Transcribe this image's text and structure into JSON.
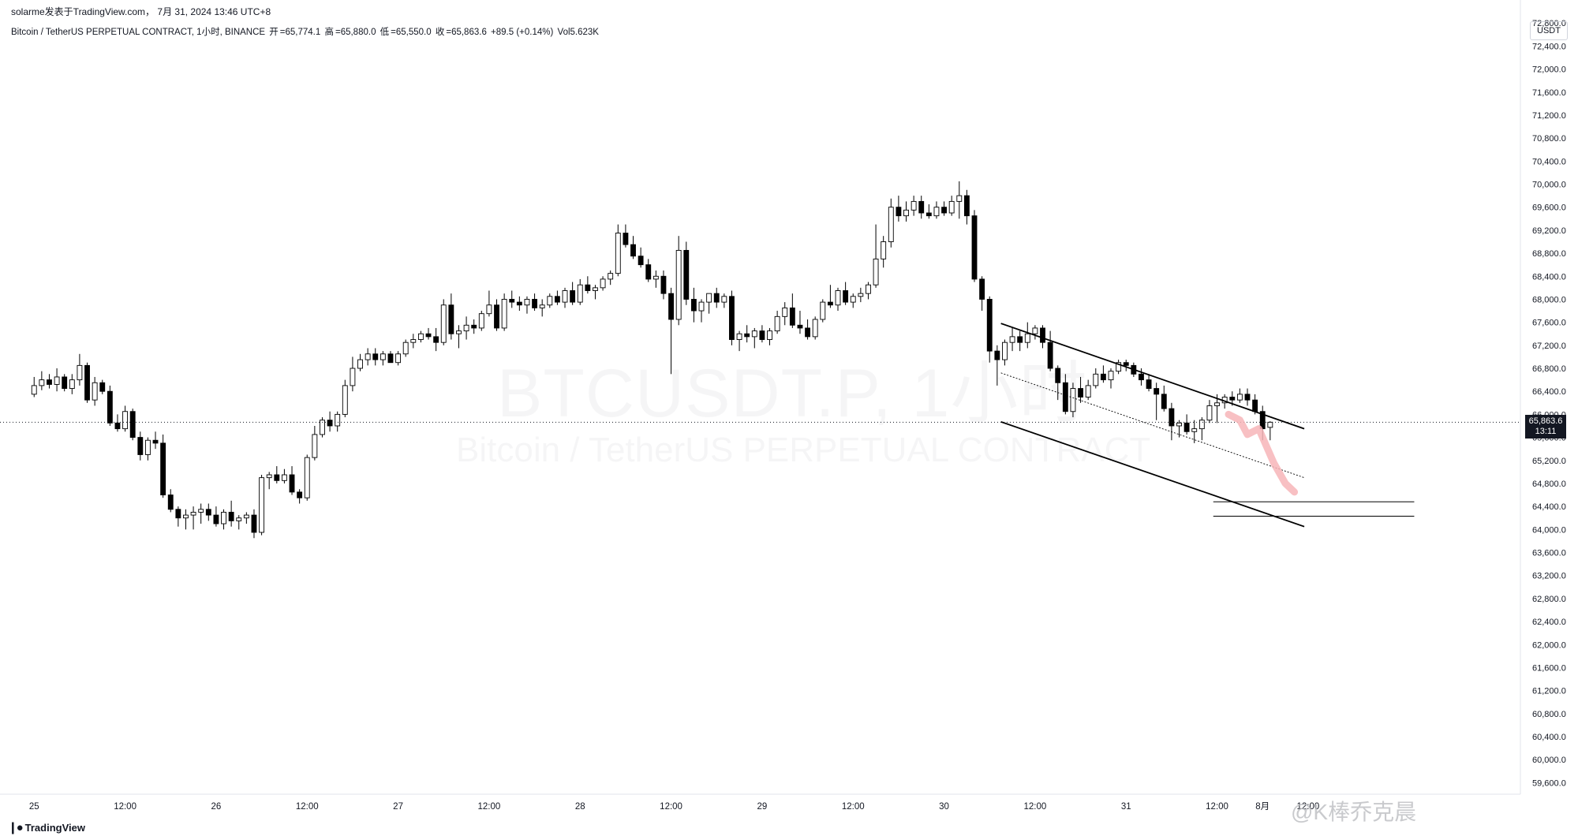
{
  "header": {
    "publisher_line": "solarme发表于TradingView.com， 7月 31, 2024 13:46 UTC+8",
    "symbol": "Bitcoin / TetherUS PERPETUAL CONTRACT, 1小时, BINANCE",
    "open_label": "开",
    "open": "=65,774.1",
    "high_label": "高",
    "high": "=65,880.0",
    "low_label": "低",
    "low": "=65,550.0",
    "close_label": "收",
    "close": "=65,863.6",
    "change": "+89.5 (+0.14%)",
    "volume": "Vol5.623K"
  },
  "currency": "USDT",
  "price_tag": {
    "price": "65,863.6",
    "countdown": "13:11"
  },
  "watermark": {
    "main": "BTCUSDT.P, 1小时",
    "sub": "Bitcoin / TetherUS PERPETUAL CONTRACT"
  },
  "footer": {
    "brand": "TradingView",
    "weibo": "@K棒乔克晨"
  },
  "colors": {
    "candle_down": "#000000",
    "candle_up": "#ffffff",
    "candle_outline": "#000000",
    "projection": "#f7b5b9",
    "grid_text": "#131722"
  },
  "chart_data": {
    "type": "candlestick",
    "title": "",
    "ylim": [
      59400,
      73200
    ],
    "y_ticks": [
      59600,
      60000,
      60400,
      60800,
      61200,
      61600,
      62000,
      62400,
      62800,
      63200,
      63600,
      64000,
      64400,
      64800,
      65200,
      65600,
      66000,
      66400,
      66800,
      67200,
      67600,
      68000,
      68400,
      68800,
      69200,
      69600,
      70000,
      70400,
      70800,
      71200,
      71600,
      72000,
      72400,
      72800
    ],
    "x_labels": [
      "25",
      "12:00",
      "26",
      "12:00",
      "27",
      "12:00",
      "28",
      "12:00",
      "29",
      "12:00",
      "30",
      "12:00",
      "31",
      "12:00",
      "8月",
      "12:00"
    ],
    "x_label_positions": [
      0,
      12,
      24,
      36,
      48,
      60,
      72,
      84,
      96,
      108,
      120,
      132,
      144,
      156,
      162,
      168
    ],
    "x_range": [
      -4.5,
      196
    ],
    "current_price": 65863.6,
    "ohlc": [
      [
        66350,
        66650,
        66300,
        66500
      ],
      [
        66500,
        66750,
        66420,
        66600
      ],
      [
        66600,
        66700,
        66450,
        66520
      ],
      [
        66520,
        66800,
        66400,
        66650
      ],
      [
        66650,
        66700,
        66400,
        66450
      ],
      [
        66450,
        66700,
        66350,
        66600
      ],
      [
        66600,
        67050,
        66500,
        66850
      ],
      [
        66850,
        66900,
        66200,
        66250
      ],
      [
        66250,
        66650,
        66150,
        66550
      ],
      [
        66550,
        66600,
        66350,
        66400
      ],
      [
        66400,
        66500,
        65800,
        65850
      ],
      [
        65850,
        66000,
        65700,
        65750
      ],
      [
        65750,
        66150,
        65700,
        66050
      ],
      [
        66050,
        66100,
        65550,
        65600
      ],
      [
        65600,
        65700,
        65200,
        65300
      ],
      [
        65300,
        65600,
        65200,
        65550
      ],
      [
        65550,
        65700,
        65400,
        65500
      ],
      [
        65500,
        65650,
        64550,
        64600
      ],
      [
        64600,
        64700,
        64300,
        64350
      ],
      [
        64350,
        64400,
        64050,
        64200
      ],
      [
        64200,
        64350,
        64000,
        64250
      ],
      [
        64250,
        64400,
        64000,
        64300
      ],
      [
        64300,
        64450,
        64100,
        64350
      ],
      [
        64350,
        64450,
        64150,
        64250
      ],
      [
        64250,
        64400,
        64050,
        64100
      ],
      [
        64100,
        64350,
        64000,
        64300
      ],
      [
        64300,
        64500,
        64050,
        64150
      ],
      [
        64150,
        64250,
        64000,
        64200
      ],
      [
        64200,
        64300,
        64100,
        64250
      ],
      [
        64250,
        64350,
        63850,
        63950
      ],
      [
        63950,
        64950,
        63900,
        64900
      ],
      [
        64900,
        65000,
        64700,
        64950
      ],
      [
        64950,
        65100,
        64800,
        64850
      ],
      [
        64850,
        65050,
        64800,
        64950
      ],
      [
        64950,
        65100,
        64600,
        64650
      ],
      [
        64650,
        64700,
        64450,
        64550
      ],
      [
        64550,
        65300,
        64500,
        65250
      ],
      [
        65250,
        65800,
        65200,
        65650
      ],
      [
        65650,
        65950,
        65600,
        65900
      ],
      [
        65900,
        66050,
        65700,
        65800
      ],
      [
        65800,
        66050,
        65700,
        66000
      ],
      [
        66000,
        66600,
        65950,
        66500
      ],
      [
        66500,
        67000,
        66400,
        66800
      ],
      [
        66800,
        67050,
        66750,
        66950
      ],
      [
        66950,
        67150,
        66850,
        67050
      ],
      [
        67050,
        67150,
        66850,
        66950
      ],
      [
        66950,
        67100,
        66850,
        67050
      ],
      [
        67050,
        67100,
        66900,
        66900
      ],
      [
        66900,
        67100,
        66850,
        67050
      ],
      [
        67050,
        67300,
        67000,
        67250
      ],
      [
        67250,
        67400,
        67150,
        67300
      ],
      [
        67300,
        67450,
        67250,
        67400
      ],
      [
        67400,
        67500,
        67300,
        67350
      ],
      [
        67350,
        67500,
        67100,
        67250
      ],
      [
        67250,
        68000,
        67200,
        67900
      ],
      [
        67900,
        68100,
        67300,
        67400
      ],
      [
        67400,
        67550,
        67150,
        67450
      ],
      [
        67450,
        67700,
        67300,
        67550
      ],
      [
        67550,
        67650,
        67400,
        67500
      ],
      [
        67500,
        67800,
        67450,
        67750
      ],
      [
        67750,
        68150,
        67700,
        67900
      ],
      [
        67900,
        68000,
        67450,
        67500
      ],
      [
        67500,
        68100,
        67450,
        68000
      ],
      [
        68000,
        68150,
        67850,
        67950
      ],
      [
        67950,
        68050,
        67800,
        67900
      ],
      [
        67900,
        68050,
        67750,
        68000
      ],
      [
        68000,
        68100,
        67800,
        67850
      ],
      [
        67850,
        68000,
        67700,
        67900
      ],
      [
        67900,
        68100,
        67850,
        68050
      ],
      [
        68050,
        68150,
        67900,
        67950
      ],
      [
        67950,
        68200,
        67850,
        68150
      ],
      [
        68150,
        68300,
        67900,
        67950
      ],
      [
        67950,
        68350,
        67900,
        68250
      ],
      [
        68250,
        68400,
        68100,
        68150
      ],
      [
        68150,
        68250,
        68000,
        68200
      ],
      [
        68200,
        68400,
        68150,
        68350
      ],
      [
        68350,
        68500,
        68250,
        68450
      ],
      [
        68450,
        69300,
        68400,
        69150
      ],
      [
        69150,
        69300,
        68900,
        68950
      ],
      [
        68950,
        69100,
        68700,
        68750
      ],
      [
        68750,
        68900,
        68550,
        68600
      ],
      [
        68600,
        68700,
        68300,
        68350
      ],
      [
        68350,
        68500,
        68200,
        68400
      ],
      [
        68400,
        68500,
        68000,
        68100
      ],
      [
        68100,
        68200,
        66700,
        67650
      ],
      [
        67650,
        69100,
        67550,
        68850
      ],
      [
        68850,
        69000,
        67900,
        68000
      ],
      [
        68000,
        68200,
        67600,
        67800
      ],
      [
        67800,
        68000,
        67600,
        67950
      ],
      [
        67950,
        68100,
        67750,
        68100
      ],
      [
        68100,
        68200,
        67850,
        67950
      ],
      [
        67950,
        68100,
        67850,
        68050
      ],
      [
        68050,
        68150,
        67200,
        67300
      ],
      [
        67300,
        67450,
        67100,
        67400
      ],
      [
        67400,
        67550,
        67250,
        67350
      ],
      [
        67350,
        67500,
        67150,
        67450
      ],
      [
        67450,
        67550,
        67250,
        67300
      ],
      [
        67300,
        67500,
        67200,
        67450
      ],
      [
        67450,
        67800,
        67400,
        67700
      ],
      [
        67700,
        67950,
        67550,
        67850
      ],
      [
        67850,
        68100,
        67500,
        67550
      ],
      [
        67550,
        67800,
        67400,
        67500
      ],
      [
        67500,
        67650,
        67300,
        67350
      ],
      [
        67350,
        67700,
        67300,
        67650
      ],
      [
        67650,
        68000,
        67600,
        67950
      ],
      [
        67950,
        68250,
        67850,
        67900
      ],
      [
        67900,
        68200,
        67800,
        68150
      ],
      [
        68150,
        68300,
        67900,
        67950
      ],
      [
        67950,
        68100,
        67850,
        68050
      ],
      [
        68050,
        68200,
        67950,
        68100
      ],
      [
        68100,
        68300,
        68000,
        68250
      ],
      [
        68250,
        69300,
        68200,
        68700
      ],
      [
        68700,
        69100,
        68550,
        69000
      ],
      [
        69000,
        69750,
        68900,
        69600
      ],
      [
        69600,
        69800,
        69350,
        69450
      ],
      [
        69450,
        69700,
        69350,
        69550
      ],
      [
        69550,
        69800,
        69450,
        69700
      ],
      [
        69700,
        69800,
        69400,
        69500
      ],
      [
        69500,
        69650,
        69400,
        69450
      ],
      [
        69450,
        69700,
        69400,
        69600
      ],
      [
        69600,
        69700,
        69450,
        69500
      ],
      [
        69500,
        69800,
        69450,
        69700
      ],
      [
        69700,
        70050,
        69400,
        69800
      ],
      [
        69800,
        69900,
        69300,
        69450
      ],
      [
        69450,
        69550,
        68300,
        68350
      ],
      [
        68350,
        68400,
        67800,
        68000
      ],
      [
        68000,
        68050,
        66900,
        67100
      ],
      [
        67100,
        67200,
        66500,
        66950
      ],
      [
        66950,
        67300,
        66850,
        67250
      ],
      [
        67250,
        67500,
        67100,
        67350
      ],
      [
        67350,
        67450,
        67100,
        67250
      ],
      [
        67250,
        67600,
        67150,
        67400
      ],
      [
        67400,
        67550,
        67300,
        67500
      ],
      [
        67500,
        67550,
        67150,
        67250
      ],
      [
        67250,
        67450,
        66750,
        66800
      ],
      [
        66800,
        66850,
        66250,
        66550
      ],
      [
        66550,
        66700,
        66000,
        66050
      ],
      [
        66050,
        66550,
        65950,
        66450
      ],
      [
        66450,
        66650,
        66200,
        66300
      ],
      [
        66300,
        66600,
        66250,
        66500
      ],
      [
        66500,
        66800,
        66450,
        66700
      ],
      [
        66700,
        66850,
        66550,
        66600
      ],
      [
        66600,
        66800,
        66450,
        66750
      ],
      [
        66750,
        66950,
        66700,
        66900
      ],
      [
        66900,
        66950,
        66750,
        66850
      ],
      [
        66850,
        66900,
        66650,
        66700
      ],
      [
        66700,
        66800,
        66500,
        66600
      ],
      [
        66600,
        66700,
        66400,
        66450
      ],
      [
        66450,
        66550,
        65900,
        66350
      ],
      [
        66350,
        66500,
        66050,
        66100
      ],
      [
        66100,
        66200,
        65550,
        65800
      ],
      [
        65800,
        65900,
        65600,
        65850
      ],
      [
        65850,
        66000,
        65650,
        65700
      ],
      [
        65700,
        65900,
        65500,
        65750
      ],
      [
        65750,
        65950,
        65550,
        65900
      ],
      [
        65900,
        66250,
        65850,
        66150
      ],
      [
        66150,
        66350,
        65850,
        66200
      ],
      [
        66200,
        66350,
        66100,
        66300
      ],
      [
        66300,
        66400,
        66150,
        66250
      ],
      [
        66250,
        66450,
        66200,
        66350
      ],
      [
        66350,
        66450,
        66150,
        66250
      ],
      [
        66250,
        66350,
        66000,
        66050
      ],
      [
        66050,
        66150,
        65550,
        65750
      ],
      [
        65774.1,
        65880,
        65550,
        65863.6
      ]
    ]
  }
}
